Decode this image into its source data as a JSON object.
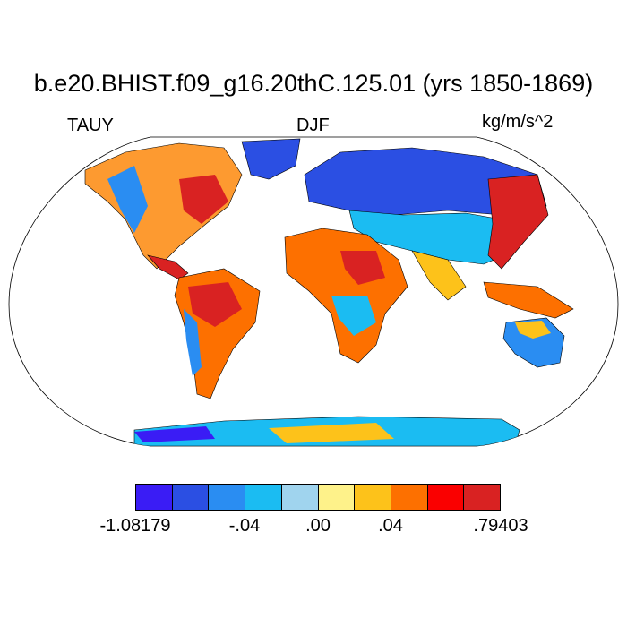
{
  "title": "b.e20.BHIST.f09_g16.20thC.125.01 (yrs 1850-1869)",
  "left_label": "TAUY",
  "center_label": "DJF",
  "units_label": "kg/m/s^2",
  "projection": "Robinson",
  "colorbar": {
    "colors": [
      "#3a1cf5",
      "#2b4fe3",
      "#2a8df2",
      "#1bbcf2",
      "#a0d4ee",
      "#fef28a",
      "#fdc21a",
      "#fd7000",
      "#fa0000",
      "#d92222"
    ],
    "labels": [
      "-1.08179",
      "-.04",
      ".00",
      ".04",
      ".79403"
    ]
  },
  "legend_colors_land_fill": "#ffffff",
  "coastline_color": "#000000"
}
